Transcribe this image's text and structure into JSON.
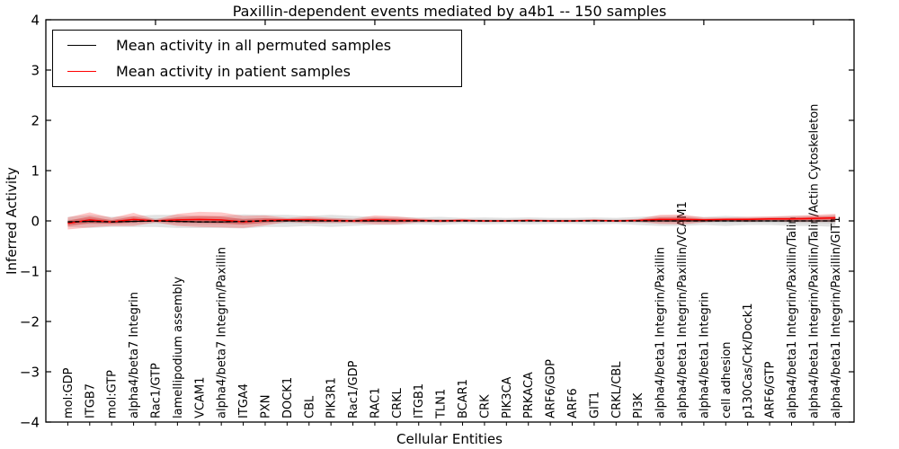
{
  "figure": {
    "title": "Paxillin-dependent events mediated by a4b1 -- 150 samples",
    "xlabel": "Cellular Entities",
    "ylabel": "Inferred Activity"
  },
  "legend": {
    "position": "upper left",
    "entries": [
      {
        "label": "Mean activity in all permuted samples",
        "color": "#000000"
      },
      {
        "label": "Mean activity in patient samples",
        "color": "#ff0000"
      }
    ]
  },
  "chart_data": {
    "type": "line",
    "title": "Paxillin-dependent events mediated by a4b1 -- 150 samples",
    "xlabel": "Cellular Entities",
    "ylabel": "Inferred Activity",
    "ylim": [
      -4,
      4
    ],
    "yticks": [
      4,
      3,
      2,
      1,
      0,
      -1,
      -2,
      -3,
      -4
    ],
    "top_axis_tick_positions": [
      5,
      10,
      15,
      20,
      25,
      30,
      35
    ],
    "grid": false,
    "legend_position": "upper left",
    "categories": [
      "mol:GDP",
      "ITGB7",
      "mol:GTP",
      "alpha4/beta7 Integrin",
      "Rac1/GTP",
      "lamellipodium assembly",
      "VCAM1",
      "alpha4/beta7 Integrin/Paxillin",
      "ITGA4",
      "PXN",
      "DOCK1",
      "CBL",
      "PIK3R1",
      "Rac1/GDP",
      "RAC1",
      "CRKL",
      "ITGB1",
      "TLN1",
      "BCAR1",
      "CRK",
      "PIK3CA",
      "PRKACA",
      "ARF6/GDP",
      "ARF6",
      "GIT1",
      "CRKL/CBL",
      "PI3K",
      "alpha4/beta1 Integrin/Paxillin",
      "alpha4/beta1 Integrin/Paxillin/VCAM1",
      "alpha4/beta1 Integrin",
      "cell adhesion",
      "p130Cas/Crk/Dock1",
      "ARF6/GTP",
      "alpha4/beta1 Integrin/Paxillin/Talin",
      "alpha4/beta1 Integrin/Paxillin/Talin/Actin Cytoskeleton",
      "alpha4/beta1 Integrin/Paxillin/GIT1"
    ],
    "series": [
      {
        "name": "Mean activity in all permuted samples",
        "color": "#000000",
        "line_style": "dashed",
        "band_color": "rgba(125,125,125,0.22)",
        "band_inner_color": "rgba(125,125,125,0.18)",
        "values": [
          -0.02,
          -0.01,
          -0.02,
          -0.01,
          0,
          -0.01,
          -0.02,
          -0.02,
          -0.01,
          0,
          0,
          0,
          0,
          0,
          0,
          0,
          0,
          0,
          0,
          0,
          0,
          0,
          0,
          0,
          0,
          0,
          0,
          0,
          0,
          0,
          0,
          0,
          0,
          0,
          0,
          0
        ],
        "band_halfwidth": [
          0.1,
          0.13,
          0.1,
          0.11,
          0.12,
          0.13,
          0.12,
          0.12,
          0.14,
          0.12,
          0.12,
          0.1,
          0.12,
          0.1,
          0.08,
          0.08,
          0.07,
          0.08,
          0.06,
          0.07,
          0.06,
          0.07,
          0.06,
          0.06,
          0.07,
          0.06,
          0.08,
          0.1,
          0.1,
          0.08,
          0.1,
          0.08,
          0.08,
          0.1,
          0.1,
          0.12
        ]
      },
      {
        "name": "Mean activity in patient samples",
        "color": "#ff0000",
        "line_style": "solid",
        "band_color": "rgba(255,0,0,0.22)",
        "band_inner_color": "rgba(220,0,0,0.30)",
        "values": [
          -0.05,
          0.02,
          -0.02,
          0.03,
          0.0,
          0.02,
          0.03,
          0.02,
          -0.02,
          0.01,
          0.02,
          0.02,
          0.01,
          0.0,
          0.02,
          0.01,
          0.01,
          0.0,
          0.01,
          0.0,
          0.0,
          0.01,
          0.0,
          0.0,
          0.01,
          0.0,
          0.01,
          0.03,
          0.03,
          0.02,
          0.03,
          0.03,
          0.04,
          0.04,
          0.05,
          0.06
        ],
        "band_halfwidth": [
          0.12,
          0.15,
          0.08,
          0.13,
          0.03,
          0.12,
          0.15,
          0.15,
          0.12,
          0.1,
          0.04,
          0.07,
          0.05,
          0.04,
          0.09,
          0.08,
          0.04,
          0.03,
          0.03,
          0.02,
          0.02,
          0.02,
          0.02,
          0.02,
          0.02,
          0.02,
          0.03,
          0.09,
          0.1,
          0.05,
          0.04,
          0.05,
          0.05,
          0.06,
          0.07,
          0.08
        ]
      }
    ]
  }
}
